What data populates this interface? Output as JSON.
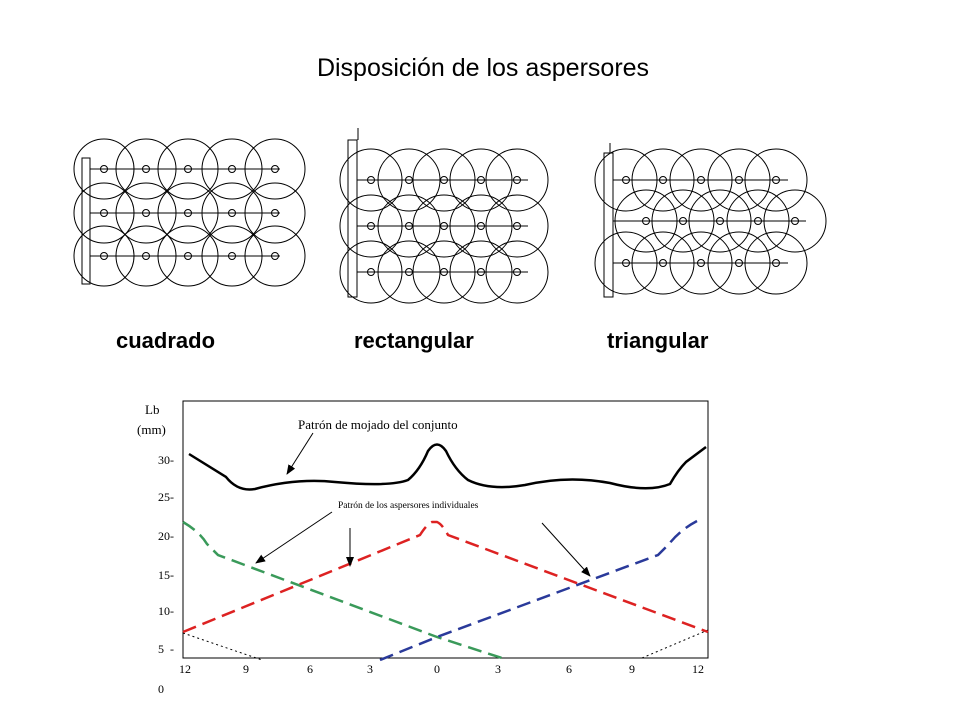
{
  "title": "Disposición de los aspersores",
  "layouts": {
    "square": {
      "label": "cuadrado"
    },
    "rectangular": {
      "label": "rectangular"
    },
    "triangular": {
      "label": "triangular"
    }
  },
  "chart": {
    "y_label_line1": "Lb",
    "y_label_line2": "(mm)",
    "y_ticks": [
      "30-",
      "25-",
      "20-",
      "15-",
      "10-",
      "5  -",
      "0"
    ],
    "x_ticks": [
      "12",
      "9",
      "6",
      "3",
      "0",
      "3",
      "6",
      "9",
      "12"
    ],
    "annotation_total": "Patrón de mojado del conjunto",
    "annotation_individual": "Patrón de los aspersores individuales"
  },
  "colors": {
    "green": "#3a9a5a",
    "red": "#dd2222",
    "blue": "#2a3a9a"
  }
}
